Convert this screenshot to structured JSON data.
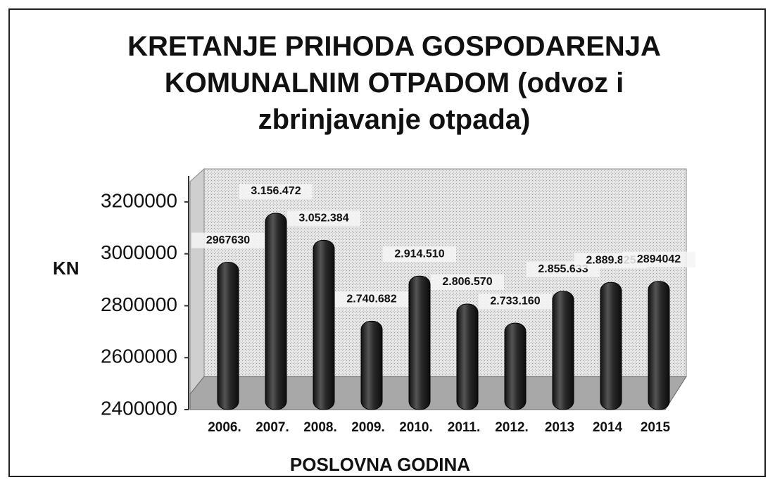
{
  "chart_data": {
    "type": "bar",
    "title": "KRETANJE PRIHODA  GOSPODARENJA KOMUNALNIM OTPADOM   (odvoz i zbrinjavanje otpada)",
    "x_label": "POSLOVNA  GODINA",
    "y_label": "KN",
    "categories": [
      "2006.",
      "2007.",
      "2008.",
      "2009.",
      "2010.",
      "2011.",
      "2012.",
      "2013",
      "2014",
      "2015"
    ],
    "values": [
      2967630,
      3156472,
      3052384,
      2740682,
      2914510,
      2806570,
      2733160,
      2855633,
      2889825,
      2894042
    ],
    "value_labels": [
      "2967630",
      "3.156.472",
      "3.052.384",
      "2.740.682",
      "2.914.510",
      "2.806.570",
      "2.733.160",
      "2.855.633",
      "2.889.825",
      "2894042"
    ],
    "color": "#1e1e1e",
    "ylim": [
      2400000,
      3300000
    ],
    "yticks": [
      2400000,
      2600000,
      2800000,
      3000000,
      3200000
    ]
  }
}
